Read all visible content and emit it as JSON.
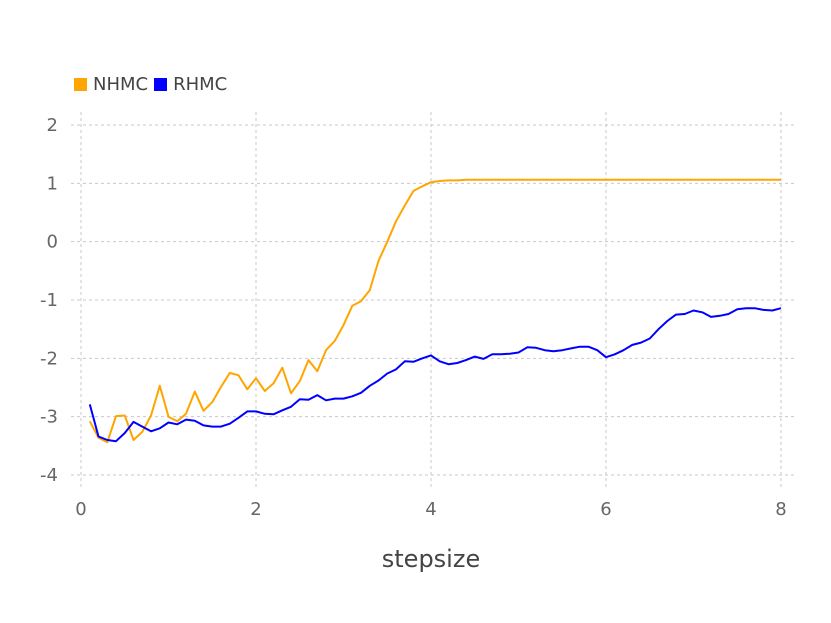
{
  "chart_data": {
    "type": "line",
    "title": "",
    "xlabel": "stepsize",
    "ylabel": "",
    "xlim": [
      0,
      8
    ],
    "ylim": [
      -4,
      2
    ],
    "x_ticks": [
      "0",
      "2",
      "4",
      "6",
      "8"
    ],
    "y_ticks": [
      "2",
      "1",
      "0",
      "-1",
      "-2",
      "-3",
      "-4"
    ],
    "grid": true,
    "legend_position": "top-left",
    "series": [
      {
        "name": "NHMC",
        "color": "#FFA500",
        "x": [
          0.1,
          0.2,
          0.3,
          0.4,
          0.5,
          0.6,
          0.7,
          0.8,
          0.9,
          1.0,
          1.1,
          1.2,
          1.3,
          1.4,
          1.5,
          1.6,
          1.7,
          1.8,
          1.9,
          2.0,
          2.1,
          2.2,
          2.3,
          2.4,
          2.5,
          2.6,
          2.7,
          2.8,
          2.9,
          3.0,
          3.1,
          3.2,
          3.3,
          3.4,
          3.5,
          3.6,
          3.7,
          3.8,
          3.9,
          4.0,
          4.1,
          4.2,
          4.3,
          4.4,
          4.5,
          5.0,
          5.5,
          6.0,
          6.5,
          7.0,
          7.5,
          8.0
        ],
        "values": [
          -3.08,
          -3.36,
          -3.44,
          -2.99,
          -2.98,
          -3.4,
          -3.26,
          -2.98,
          -2.47,
          -3.0,
          -3.08,
          -2.95,
          -2.57,
          -2.9,
          -2.75,
          -2.49,
          -2.25,
          -2.29,
          -2.53,
          -2.34,
          -2.56,
          -2.43,
          -2.16,
          -2.6,
          -2.39,
          -2.03,
          -2.22,
          -1.86,
          -1.7,
          -1.43,
          -1.1,
          -1.02,
          -0.83,
          -0.33,
          0.0,
          0.35,
          0.62,
          0.87,
          0.95,
          1.02,
          1.04,
          1.05,
          1.05,
          1.06,
          1.06,
          1.06,
          1.06,
          1.06,
          1.06,
          1.06,
          1.06,
          1.06
        ]
      },
      {
        "name": "RHMC",
        "color": "#0000FF",
        "x": [
          0.1,
          0.2,
          0.3,
          0.4,
          0.5,
          0.6,
          0.7,
          0.8,
          0.9,
          1.0,
          1.1,
          1.2,
          1.3,
          1.4,
          1.5,
          1.6,
          1.7,
          1.8,
          1.9,
          2.0,
          2.1,
          2.2,
          2.3,
          2.4,
          2.5,
          2.6,
          2.7,
          2.8,
          2.9,
          3.0,
          3.1,
          3.2,
          3.3,
          3.4,
          3.5,
          3.6,
          3.7,
          3.8,
          3.9,
          4.0,
          4.1,
          4.2,
          4.3,
          4.4,
          4.5,
          4.6,
          4.7,
          4.8,
          4.9,
          5.0,
          5.1,
          5.2,
          5.3,
          5.4,
          5.5,
          5.6,
          5.7,
          5.8,
          5.9,
          6.0,
          6.1,
          6.2,
          6.3,
          6.4,
          6.5,
          6.6,
          6.7,
          6.8,
          6.9,
          7.0,
          7.1,
          7.2,
          7.3,
          7.4,
          7.5,
          7.6,
          7.7,
          7.8,
          7.9,
          8.0
        ],
        "values": [
          -2.79,
          -3.34,
          -3.4,
          -3.42,
          -3.28,
          -3.09,
          -3.17,
          -3.25,
          -3.2,
          -3.1,
          -3.13,
          -3.05,
          -3.07,
          -3.15,
          -3.17,
          -3.17,
          -3.12,
          -3.02,
          -2.91,
          -2.91,
          -2.95,
          -2.96,
          -2.89,
          -2.83,
          -2.7,
          -2.71,
          -2.63,
          -2.72,
          -2.69,
          -2.69,
          -2.65,
          -2.59,
          -2.47,
          -2.38,
          -2.26,
          -2.19,
          -2.05,
          -2.06,
          -2.0,
          -1.95,
          -2.05,
          -2.1,
          -2.08,
          -2.03,
          -1.97,
          -2.01,
          -1.93,
          -1.93,
          -1.92,
          -1.9,
          -1.81,
          -1.82,
          -1.86,
          -1.88,
          -1.86,
          -1.83,
          -1.8,
          -1.8,
          -1.86,
          -1.98,
          -1.93,
          -1.86,
          -1.77,
          -1.73,
          -1.66,
          -1.5,
          -1.36,
          -1.25,
          -1.24,
          -1.18,
          -1.21,
          -1.29,
          -1.27,
          -1.24,
          -1.16,
          -1.14,
          -1.14,
          -1.17,
          -1.18,
          -1.14
        ]
      }
    ]
  }
}
